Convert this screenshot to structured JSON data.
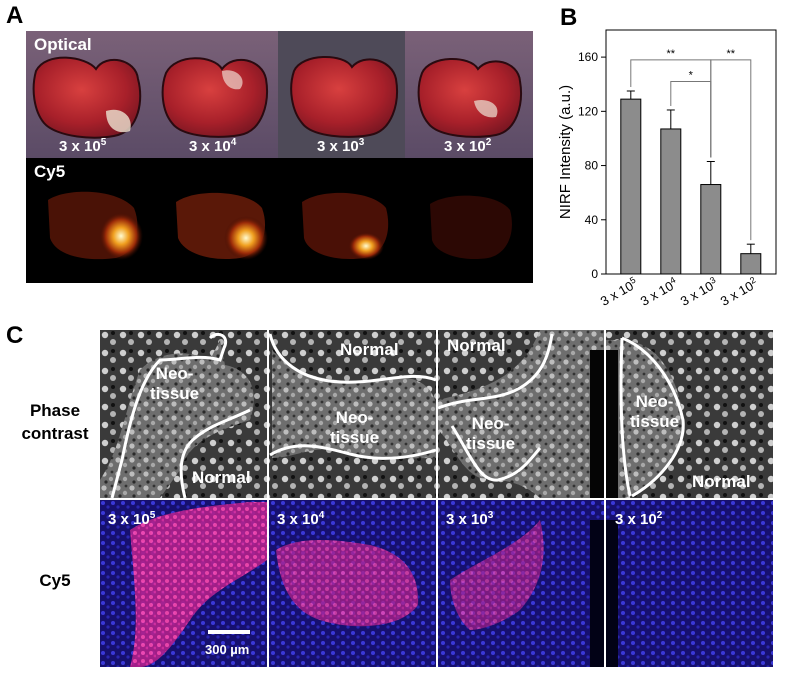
{
  "panels": {
    "a": {
      "letter": "A",
      "optical_label": "Optical",
      "cy5_label": "Cy5",
      "concentrations": [
        {
          "base": "3 x 10",
          "exp": "5"
        },
        {
          "base": "3 x 10",
          "exp": "4"
        },
        {
          "base": "3 x 10",
          "exp": "3"
        },
        {
          "base": "3 x 10",
          "exp": "2"
        }
      ]
    },
    "b": {
      "letter": "B"
    },
    "c": {
      "letter": "C",
      "row_phase": [
        "Phase",
        "contrast"
      ],
      "row_cy5": "Cy5",
      "tiles": [
        {
          "conc_base": "3 x 10",
          "conc_exp": "5",
          "labels": [
            {
              "text": [
                "Neo-",
                "tissue"
              ]
            },
            {
              "text": [
                "Normal"
              ]
            }
          ]
        },
        {
          "conc_base": "3 x 10",
          "conc_exp": "4",
          "labels": [
            {
              "text": [
                "Normal"
              ]
            },
            {
              "text": [
                "Neo-",
                "tissue"
              ]
            }
          ]
        },
        {
          "conc_base": "3 x 10",
          "conc_exp": "3",
          "labels": [
            {
              "text": [
                "Normal"
              ]
            },
            {
              "text": [
                "Neo-",
                "tissue"
              ]
            }
          ]
        },
        {
          "conc_base": "3 x 10",
          "conc_exp": "2",
          "labels": [
            {
              "text": [
                "Neo-",
                "tissue"
              ]
            },
            {
              "text": [
                "Normal"
              ]
            }
          ]
        }
      ],
      "scale_bar": "300 µm"
    }
  },
  "chart_data": {
    "type": "bar",
    "categories": [
      "3 x 10^5",
      "3 x 10^4",
      "3 x 10^3",
      "3 x 10^2"
    ],
    "category_labels": [
      {
        "base": "3 x 10",
        "exp": "5"
      },
      {
        "base": "3 x 10",
        "exp": "4"
      },
      {
        "base": "3 x 10",
        "exp": "3"
      },
      {
        "base": "3 x 10",
        "exp": "2"
      }
    ],
    "values": [
      129,
      107,
      66,
      15
    ],
    "errors": [
      6,
      14,
      17,
      7
    ],
    "ylabel": "NIRF Intensity (a.u.)",
    "ylim": [
      0,
      180
    ],
    "yticks": [
      0,
      40,
      80,
      120,
      160
    ],
    "significance": [
      {
        "from": 0,
        "to": 2,
        "label": "**"
      },
      {
        "from": 1,
        "to": 2,
        "label": "*"
      },
      {
        "from": 2,
        "to": 3,
        "label": "**"
      }
    ],
    "colors": {
      "bar": "#8c8c8c",
      "outline": "#000000"
    },
    "grid": false
  }
}
